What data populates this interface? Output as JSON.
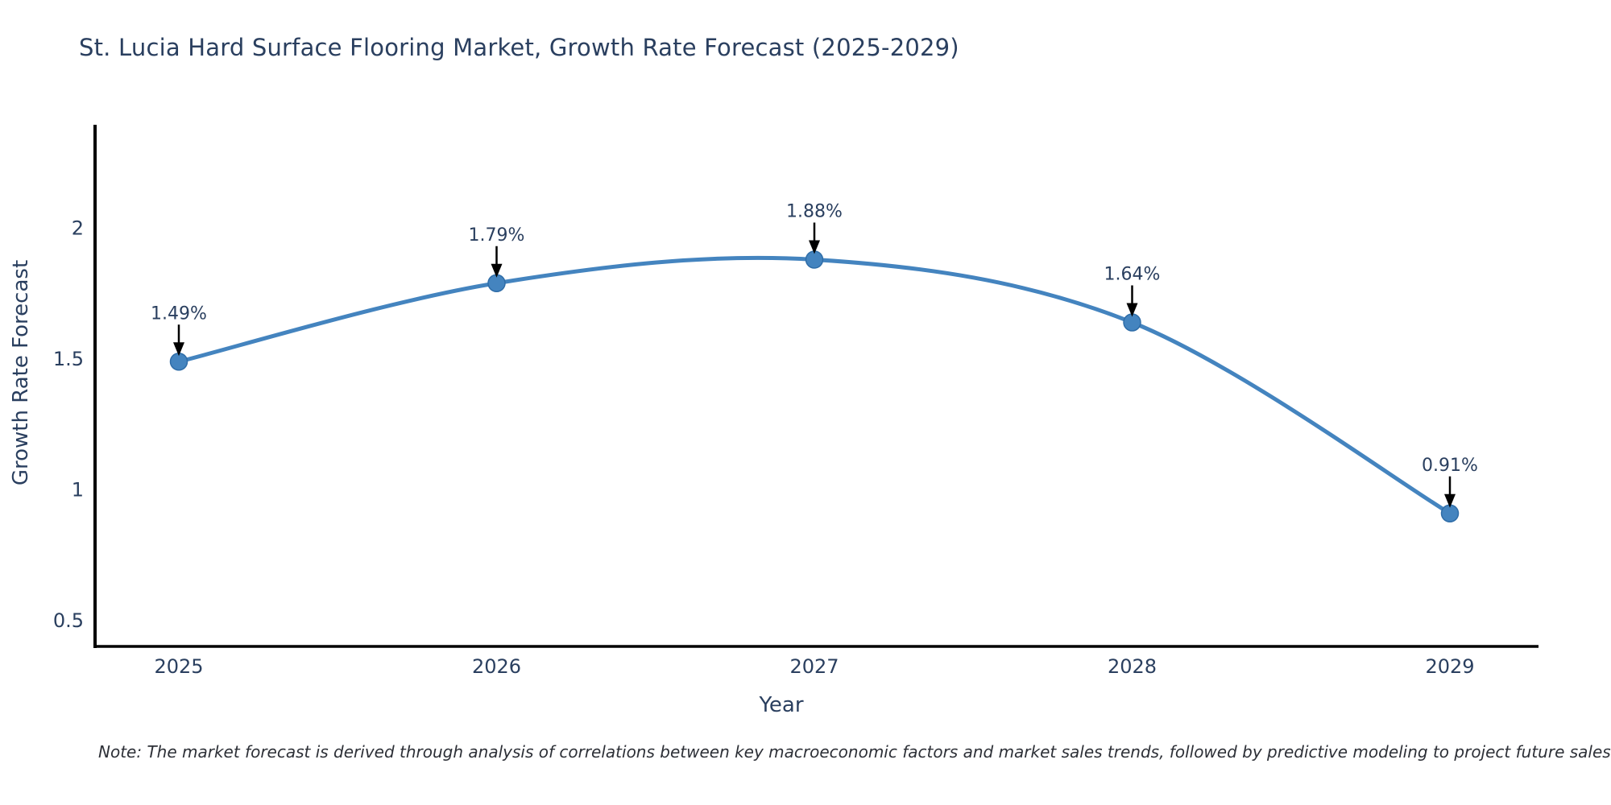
{
  "chart_data": {
    "type": "line",
    "title": "St. Lucia Hard Surface Flooring Market, Growth Rate Forecast (2025-2029)",
    "xlabel": "Year",
    "ylabel": "Growth Rate Forecast",
    "x": [
      2025,
      2026,
      2027,
      2028,
      2029
    ],
    "values": [
      1.49,
      1.79,
      1.88,
      1.64,
      0.91
    ],
    "point_labels": [
      "1.49%",
      "1.79%",
      "1.88%",
      "1.64%",
      "0.91%"
    ],
    "yticks": [
      0.5,
      1,
      1.5,
      2
    ],
    "ytick_labels": [
      "0.5",
      "1",
      "1.5",
      "2"
    ],
    "ylim": [
      0.4,
      2.4
    ],
    "line_shape": "spline",
    "grid": false,
    "legend": "none",
    "colors": {
      "line": "#4484bf",
      "marker_fill": "#4484bf",
      "marker_edge": "#2f6da8",
      "text": "#2a3f5f",
      "axis": "#000000",
      "arrow": "#000000"
    },
    "note": "Note: The market forecast is derived through analysis of correlations between key macroeconomic factors and market sales trends, followed by predictive modeling to project future sales trends."
  }
}
